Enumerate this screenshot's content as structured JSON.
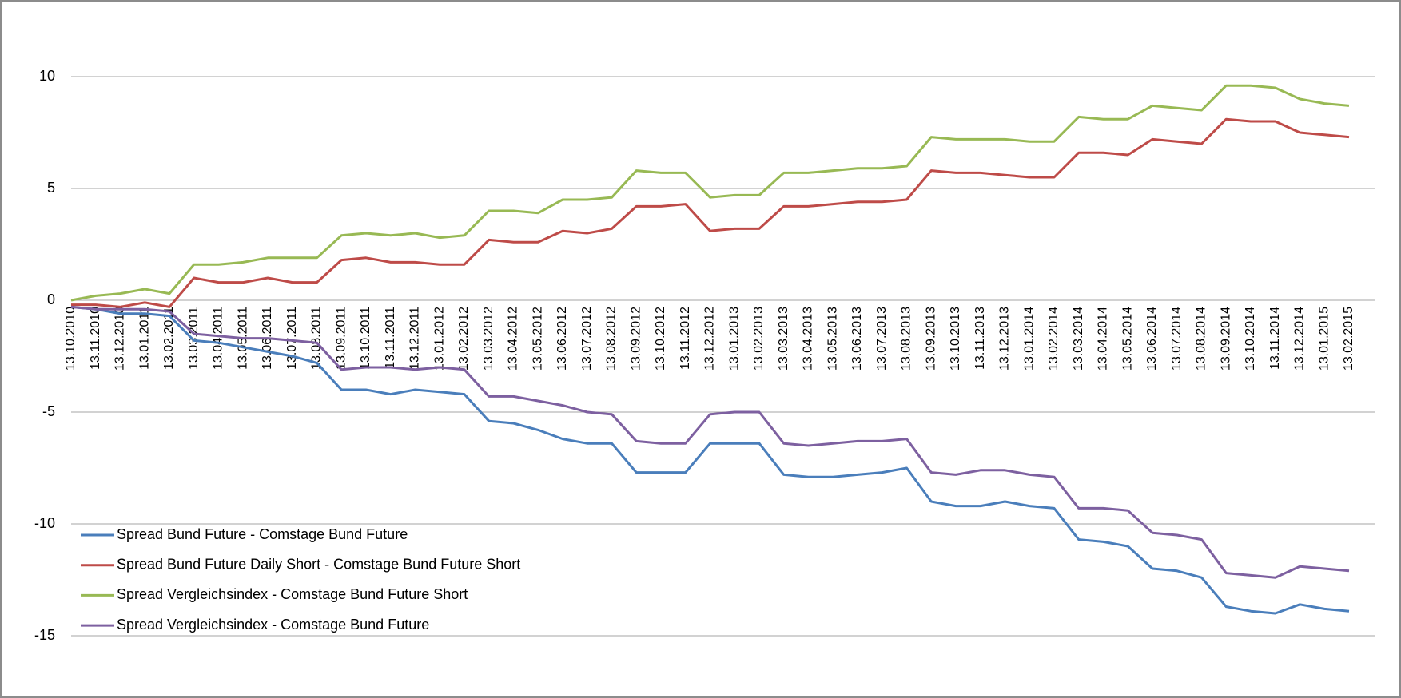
{
  "chart_data": {
    "type": "line",
    "categories": [
      "13.10.2010",
      "13.11.2010",
      "13.12.2010",
      "13.01.2011",
      "13.02.2011",
      "13.03.2011",
      "13.04.2011",
      "13.05.2011",
      "13.06.2011",
      "13.07.2011",
      "13.08.2011",
      "13.09.2011",
      "13.10.2011",
      "13.11.2011",
      "13.12.2011",
      "13.01.2012",
      "13.02.2012",
      "13.03.2012",
      "13.04.2012",
      "13.05.2012",
      "13.06.2012",
      "13.07.2012",
      "13.08.2012",
      "13.09.2012",
      "13.10.2012",
      "13.11.2012",
      "13.12.2012",
      "13.01.2013",
      "13.02.2013",
      "13.03.2013",
      "13.04.2013",
      "13.05.2013",
      "13.06.2013",
      "13.07.2013",
      "13.08.2013",
      "13.09.2013",
      "13.10.2013",
      "13.11.2013",
      "13.12.2013",
      "13.01.2014",
      "13.02.2014",
      "13.03.2014",
      "13.04.2014",
      "13.05.2014",
      "13.06.2014",
      "13.07.2014",
      "13.08.2014",
      "13.09.2014",
      "13.10.2014",
      "13.11.2014",
      "13.12.2014",
      "13.01.2015",
      "13.02.2015"
    ],
    "series": [
      {
        "name": "Spread Bund Future - Comstage Bund Future",
        "color": "#4a7ebb",
        "values": [
          -0.3,
          -0.4,
          -0.6,
          -0.6,
          -0.7,
          -1.8,
          -1.9,
          -2.1,
          -2.3,
          -2.5,
          -2.8,
          -4.0,
          -4.0,
          -4.2,
          -4.0,
          -4.1,
          -4.2,
          -5.4,
          -5.5,
          -5.8,
          -6.2,
          -6.4,
          -6.4,
          -7.7,
          -7.7,
          -7.7,
          -6.4,
          -6.4,
          -6.4,
          -7.8,
          -7.9,
          -7.9,
          -7.8,
          -7.7,
          -7.5,
          -9.0,
          -9.2,
          -9.2,
          -9.0,
          -9.2,
          -9.3,
          -10.7,
          -10.8,
          -11.0,
          -12.0,
          -12.1,
          -12.4,
          -13.7,
          -13.9,
          -14.0,
          -13.6,
          -13.8,
          -13.9
        ]
      },
      {
        "name": "Spread Bund Future Daily Short - Comstage Bund Future Short",
        "color": "#be4b48",
        "values": [
          -0.2,
          -0.2,
          -0.3,
          -0.1,
          -0.3,
          1.0,
          0.8,
          0.8,
          1.0,
          0.8,
          0.8,
          1.8,
          1.9,
          1.7,
          1.7,
          1.6,
          1.6,
          2.7,
          2.6,
          2.6,
          3.1,
          3.0,
          3.2,
          4.2,
          4.2,
          4.3,
          3.1,
          3.2,
          3.2,
          4.2,
          4.2,
          4.3,
          4.4,
          4.4,
          4.5,
          5.8,
          5.7,
          5.7,
          5.6,
          5.5,
          5.5,
          6.6,
          6.6,
          6.5,
          7.2,
          7.1,
          7.0,
          8.1,
          8.0,
          8.0,
          7.5,
          7.4,
          7.3
        ]
      },
      {
        "name": "Spread Vergleichsindex - Comstage Bund Future Short",
        "color": "#98b954",
        "values": [
          0.0,
          0.2,
          0.3,
          0.5,
          0.3,
          1.6,
          1.6,
          1.7,
          1.9,
          1.9,
          1.9,
          2.9,
          3.0,
          2.9,
          3.0,
          2.8,
          2.9,
          4.0,
          4.0,
          3.9,
          4.5,
          4.5,
          4.6,
          5.8,
          5.7,
          5.7,
          4.6,
          4.7,
          4.7,
          5.7,
          5.7,
          5.8,
          5.9,
          5.9,
          6.0,
          7.3,
          7.2,
          7.2,
          7.2,
          7.1,
          7.1,
          8.2,
          8.1,
          8.1,
          8.7,
          8.6,
          8.5,
          9.6,
          9.6,
          9.5,
          9.0,
          8.8,
          8.7
        ]
      },
      {
        "name": "Spread Vergleichsindex - Comstage Bund Future",
        "color": "#7d60a0",
        "values": [
          -0.3,
          -0.4,
          -0.4,
          -0.4,
          -0.5,
          -1.5,
          -1.6,
          -1.7,
          -1.7,
          -1.8,
          -1.9,
          -3.1,
          -3.0,
          -3.0,
          -3.1,
          -3.0,
          -3.1,
          -4.3,
          -4.3,
          -4.5,
          -4.7,
          -5.0,
          -5.1,
          -6.3,
          -6.4,
          -6.4,
          -5.1,
          -5.0,
          -5.0,
          -6.4,
          -6.5,
          -6.4,
          -6.3,
          -6.3,
          -6.2,
          -7.7,
          -7.8,
          -7.6,
          -7.6,
          -7.8,
          -7.9,
          -9.3,
          -9.3,
          -9.4,
          -10.4,
          -10.5,
          -10.7,
          -12.2,
          -12.3,
          -12.4,
          -11.9,
          -12.0,
          -12.1
        ]
      }
    ],
    "ylim": [
      -15,
      10
    ],
    "yticks": [
      -15,
      -10,
      -5,
      0,
      5,
      10
    ],
    "grid": true
  }
}
